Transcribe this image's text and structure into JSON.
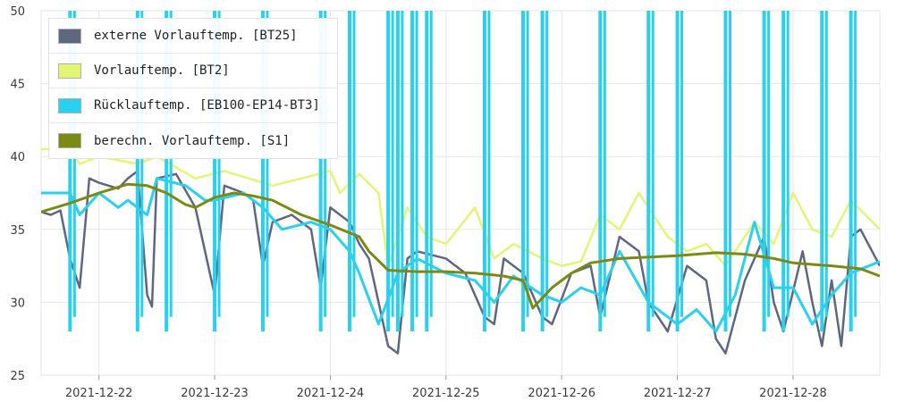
{
  "chart_data": {
    "type": "line",
    "title": "",
    "xlabel": "",
    "ylabel": "",
    "ylim": [
      25,
      50
    ],
    "yticks": [
      25,
      30,
      35,
      40,
      45,
      50
    ],
    "xlim": [
      "2021-12-21 12:00",
      "2021-12-28 18:00"
    ],
    "xticks": [
      "2021-12-22",
      "2021-12-23",
      "2021-12-24",
      "2021-12-25",
      "2021-12-26",
      "2021-12-27",
      "2021-12-28"
    ],
    "grid": true,
    "legend": "top-left",
    "series": [
      {
        "name": "externe Vorlauftemp. [BT25]",
        "color": "#5f6680",
        "points": [
          [
            "2021-12-21 12:00",
            36.2
          ],
          [
            "2021-12-21 14:00",
            36.0
          ],
          [
            "2021-12-21 16:00",
            36.3
          ],
          [
            "2021-12-21 18:00",
            33.0
          ],
          [
            "2021-12-21 20:00",
            31.0
          ],
          [
            "2021-12-21 22:00",
            38.5
          ],
          [
            "2021-12-22 00:00",
            38.2
          ],
          [
            "2021-12-22 04:00",
            37.8
          ],
          [
            "2021-12-22 06:00",
            38.5
          ],
          [
            "2021-12-22 08:00",
            39.0
          ],
          [
            "2021-12-22 10:00",
            30.5
          ],
          [
            "2021-12-22 11:00",
            29.7
          ],
          [
            "2021-12-22 12:00",
            38.5
          ],
          [
            "2021-12-22 16:00",
            38.8
          ],
          [
            "2021-12-22 20:00",
            36.5
          ],
          [
            "2021-12-23 00:00",
            30.5
          ],
          [
            "2021-12-23 02:00",
            38.0
          ],
          [
            "2021-12-23 06:00",
            37.5
          ],
          [
            "2021-12-23 08:00",
            37.0
          ],
          [
            "2021-12-23 10:00",
            32.5
          ],
          [
            "2021-12-23 12:00",
            35.5
          ],
          [
            "2021-12-23 16:00",
            36.0
          ],
          [
            "2021-12-23 20:00",
            35.0
          ],
          [
            "2021-12-23 22:00",
            31.0
          ],
          [
            "2021-12-24 00:00",
            36.5
          ],
          [
            "2021-12-24 04:00",
            35.5
          ],
          [
            "2021-12-24 06:00",
            34.0
          ],
          [
            "2021-12-24 08:00",
            33.0
          ],
          [
            "2021-12-24 10:00",
            30.0
          ],
          [
            "2021-12-24 12:00",
            27.0
          ],
          [
            "2021-12-24 14:00",
            26.5
          ],
          [
            "2021-12-24 16:00",
            33.0
          ],
          [
            "2021-12-24 18:00",
            33.5
          ],
          [
            "2021-12-25 00:00",
            33.0
          ],
          [
            "2021-12-25 04:00",
            32.0
          ],
          [
            "2021-12-25 08:00",
            29.0
          ],
          [
            "2021-12-25 10:00",
            28.5
          ],
          [
            "2021-12-25 12:00",
            33.0
          ],
          [
            "2021-12-25 16:00",
            32.0
          ],
          [
            "2021-12-25 20:00",
            29.0
          ],
          [
            "2021-12-25 22:00",
            28.5
          ],
          [
            "2021-12-26 02:00",
            32.0
          ],
          [
            "2021-12-26 06:00",
            32.5
          ],
          [
            "2021-12-26 08:00",
            29.0
          ],
          [
            "2021-12-26 12:00",
            34.5
          ],
          [
            "2021-12-26 16:00",
            33.5
          ],
          [
            "2021-12-26 18:00",
            30.0
          ],
          [
            "2021-12-26 22:00",
            28.0
          ],
          [
            "2021-12-27 02:00",
            32.5
          ],
          [
            "2021-12-27 06:00",
            31.5
          ],
          [
            "2021-12-27 08:00",
            27.5
          ],
          [
            "2021-12-27 10:00",
            26.5
          ],
          [
            "2021-12-27 14:00",
            31.5
          ],
          [
            "2021-12-27 18:00",
            34.5
          ],
          [
            "2021-12-27 20:00",
            30.0
          ],
          [
            "2021-12-27 22:00",
            28.0
          ],
          [
            "2021-12-28 02:00",
            33.5
          ],
          [
            "2021-12-28 04:00",
            30.0
          ],
          [
            "2021-12-28 06:00",
            27.0
          ],
          [
            "2021-12-28 08:00",
            31.5
          ],
          [
            "2021-12-28 10:00",
            27.0
          ],
          [
            "2021-12-28 12:00",
            34.5
          ],
          [
            "2021-12-28 14:00",
            35.0
          ],
          [
            "2021-12-28 18:00",
            32.5
          ]
        ]
      },
      {
        "name": "Vorlauftemp. [BT2]",
        "color": "#e4f576",
        "points": [
          [
            "2021-12-21 12:00",
            40.5
          ],
          [
            "2021-12-21 18:00",
            40.5
          ],
          [
            "2021-12-21 20:00",
            39.5
          ],
          [
            "2021-12-22 00:00",
            40.0
          ],
          [
            "2021-12-22 08:00",
            39.5
          ],
          [
            "2021-12-22 12:00",
            40.0
          ],
          [
            "2021-12-22 20:00",
            38.5
          ],
          [
            "2021-12-23 02:00",
            39.0
          ],
          [
            "2021-12-23 12:00",
            38.0
          ],
          [
            "2021-12-23 18:00",
            38.5
          ],
          [
            "2021-12-24 00:00",
            39.0
          ],
          [
            "2021-12-24 02:00",
            37.5
          ],
          [
            "2021-12-24 06:00",
            38.8
          ],
          [
            "2021-12-24 10:00",
            37.5
          ],
          [
            "2021-12-24 12:00",
            32.5
          ],
          [
            "2021-12-24 16:00",
            36.5
          ],
          [
            "2021-12-24 20:00",
            34.5
          ],
          [
            "2021-12-25 00:00",
            34.0
          ],
          [
            "2021-12-25 06:00",
            36.5
          ],
          [
            "2021-12-25 10:00",
            33.0
          ],
          [
            "2021-12-25 14:00",
            34.0
          ],
          [
            "2021-12-25 20:00",
            33.0
          ],
          [
            "2021-12-26 00:00",
            32.5
          ],
          [
            "2021-12-26 04:00",
            32.8
          ],
          [
            "2021-12-26 08:00",
            36.0
          ],
          [
            "2021-12-26 12:00",
            35.0
          ],
          [
            "2021-12-26 16:00",
            37.5
          ],
          [
            "2021-12-26 22:00",
            34.5
          ],
          [
            "2021-12-27 02:00",
            33.5
          ],
          [
            "2021-12-27 06:00",
            34.0
          ],
          [
            "2021-12-27 10:00",
            32.5
          ],
          [
            "2021-12-27 16:00",
            35.5
          ],
          [
            "2021-12-27 20:00",
            34.0
          ],
          [
            "2021-12-28 00:00",
            37.5
          ],
          [
            "2021-12-28 04:00",
            35.0
          ],
          [
            "2021-12-28 08:00",
            34.5
          ],
          [
            "2021-12-28 12:00",
            37.0
          ],
          [
            "2021-12-28 18:00",
            35.0
          ]
        ]
      },
      {
        "name": "Rücklauftemp. [EB100-EP14-BT3]",
        "color": "#29d1ee",
        "points": [
          [
            "2021-12-21 12:00",
            37.5
          ],
          [
            "2021-12-21 18:00",
            37.5
          ],
          [
            "2021-12-21 20:00",
            36.0
          ],
          [
            "2021-12-22 00:00",
            37.5
          ],
          [
            "2021-12-22 04:00",
            36.5
          ],
          [
            "2021-12-22 06:00",
            37.0
          ],
          [
            "2021-12-22 10:00",
            36.0
          ],
          [
            "2021-12-22 12:00",
            38.5
          ],
          [
            "2021-12-22 18:00",
            38.0
          ],
          [
            "2021-12-22 22:00",
            37.0
          ],
          [
            "2021-12-23 00:00",
            37.0
          ],
          [
            "2021-12-23 06:00",
            37.5
          ],
          [
            "2021-12-23 10:00",
            36.5
          ],
          [
            "2021-12-23 14:00",
            35.0
          ],
          [
            "2021-12-23 20:00",
            35.5
          ],
          [
            "2021-12-24 00:00",
            35.0
          ],
          [
            "2021-12-24 04:00",
            33.5
          ],
          [
            "2021-12-24 06:00",
            32.0
          ],
          [
            "2021-12-24 10:00",
            28.5
          ],
          [
            "2021-12-24 14:00",
            32.0
          ],
          [
            "2021-12-24 18:00",
            33.0
          ],
          [
            "2021-12-25 00:00",
            32.0
          ],
          [
            "2021-12-25 06:00",
            31.5
          ],
          [
            "2021-12-25 10:00",
            30.0
          ],
          [
            "2021-12-25 14:00",
            31.8
          ],
          [
            "2021-12-25 20:00",
            30.5
          ],
          [
            "2021-12-26 00:00",
            30.0
          ],
          [
            "2021-12-26 04:00",
            31.0
          ],
          [
            "2021-12-26 08:00",
            30.5
          ],
          [
            "2021-12-26 12:00",
            33.5
          ],
          [
            "2021-12-26 18:00",
            30.0
          ],
          [
            "2021-12-27 00:00",
            28.5
          ],
          [
            "2021-12-27 04:00",
            29.5
          ],
          [
            "2021-12-27 08:00",
            28.0
          ],
          [
            "2021-12-27 12:00",
            30.5
          ],
          [
            "2021-12-27 16:00",
            35.5
          ],
          [
            "2021-12-27 20:00",
            31.0
          ],
          [
            "2021-12-28 00:00",
            31.0
          ],
          [
            "2021-12-28 04:00",
            28.5
          ],
          [
            "2021-12-28 08:00",
            30.5
          ],
          [
            "2021-12-28 12:00",
            32.0
          ],
          [
            "2021-12-28 18:00",
            32.8
          ]
        ],
        "spikes": [
          "2021-12-21 18:00",
          "2021-12-22 08:00",
          "2021-12-22 14:00",
          "2021-12-23 00:00",
          "2021-12-23 10:00",
          "2021-12-23 22:00",
          "2021-12-24 04:00",
          "2021-12-24 12:00",
          "2021-12-24 14:00",
          "2021-12-24 17:00",
          "2021-12-24 20:00",
          "2021-12-25 08:00",
          "2021-12-25 16:00",
          "2021-12-25 20:00",
          "2021-12-26 08:00",
          "2021-12-26 18:00",
          "2021-12-27 00:00",
          "2021-12-27 10:00",
          "2021-12-27 18:00",
          "2021-12-27 22:00",
          "2021-12-28 06:00",
          "2021-12-28 12:00"
        ]
      },
      {
        "name": "berechn. Vorlauftemp. [S1]",
        "color": "#7b8a12",
        "points": [
          [
            "2021-12-21 12:00",
            36.2
          ],
          [
            "2021-12-21 18:00",
            36.8
          ],
          [
            "2021-12-22 00:00",
            37.5
          ],
          [
            "2021-12-22 06:00",
            38.1
          ],
          [
            "2021-12-22 10:00",
            38.0
          ],
          [
            "2021-12-22 14:00",
            37.5
          ],
          [
            "2021-12-22 18:00",
            36.7
          ],
          [
            "2021-12-22 20:00",
            36.5
          ],
          [
            "2021-12-23 00:00",
            37.2
          ],
          [
            "2021-12-23 04:00",
            37.5
          ],
          [
            "2021-12-23 08:00",
            37.3
          ],
          [
            "2021-12-23 12:00",
            37.0
          ],
          [
            "2021-12-23 18:00",
            36.0
          ],
          [
            "2021-12-24 00:00",
            35.3
          ],
          [
            "2021-12-24 06:00",
            34.5
          ],
          [
            "2021-12-24 08:00",
            33.5
          ],
          [
            "2021-12-24 12:00",
            32.2
          ],
          [
            "2021-12-24 18:00",
            32.1
          ],
          [
            "2021-12-25 00:00",
            32.1
          ],
          [
            "2021-12-25 06:00",
            32.0
          ],
          [
            "2021-12-25 12:00",
            31.8
          ],
          [
            "2021-12-25 16:00",
            31.5
          ],
          [
            "2021-12-25 18:00",
            29.6
          ],
          [
            "2021-12-25 22:00",
            31.0
          ],
          [
            "2021-12-26 02:00",
            32.0
          ],
          [
            "2021-12-26 06:00",
            32.7
          ],
          [
            "2021-12-26 12:00",
            33.0
          ],
          [
            "2021-12-27 00:00",
            33.2
          ],
          [
            "2021-12-27 08:00",
            33.4
          ],
          [
            "2021-12-27 14:00",
            33.3
          ],
          [
            "2021-12-27 20:00",
            33.0
          ],
          [
            "2021-12-28 00:00",
            32.7
          ],
          [
            "2021-12-28 08:00",
            32.5
          ],
          [
            "2021-12-28 14:00",
            32.3
          ],
          [
            "2021-12-28 18:00",
            31.8
          ]
        ]
      }
    ]
  }
}
